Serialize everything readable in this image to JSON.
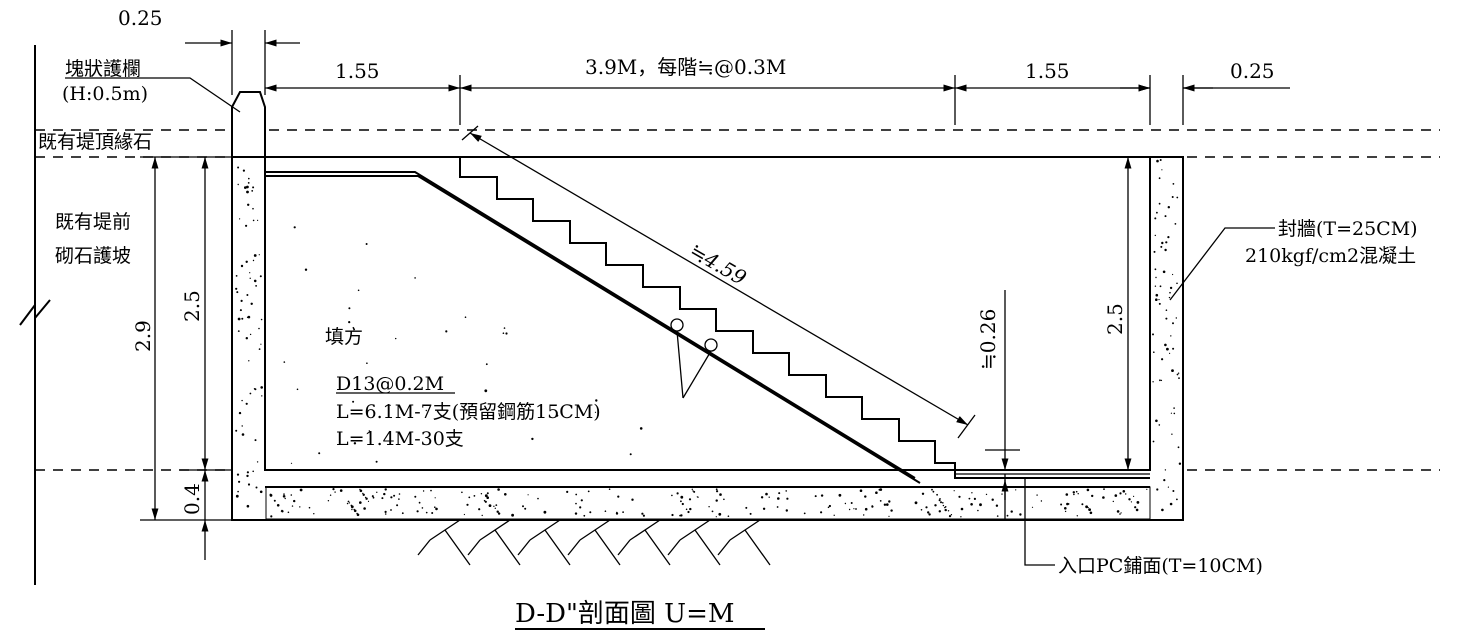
{
  "dimensions": {
    "rail_width_top": "0.25",
    "left_landing": "1.55",
    "stair_run": "3.9M，每階≒@0.3M",
    "right_landing": "1.55",
    "wall_width": "0.25",
    "total_height": "2.9",
    "inner_height_left": "2.5",
    "base_thickness": "0.4",
    "inner_height_right": "2.5",
    "stair_slope": "≒4.59",
    "landing_drop": "≒0.26"
  },
  "labels": {
    "parapet_name": "塊狀護欄",
    "parapet_height": "(H:0.5m)",
    "existing_curb": "既有堤頂緣石",
    "existing_slope_1": "既有堤前",
    "existing_slope_2": "砌石護坡",
    "fill": "填方",
    "rebar_spec": "D13@0.2M",
    "rebar_long": "L=6.1M-7支(預留鋼筋15CM)",
    "rebar_short": "L=1.4M-30支",
    "seal_wall_1": "封牆(T=25CM)",
    "seal_wall_2": "210kgf/cm2混凝土",
    "paving": "入口PC鋪面(T=10CM)"
  },
  "title": "D-D\"剖面圖 U=M"
}
